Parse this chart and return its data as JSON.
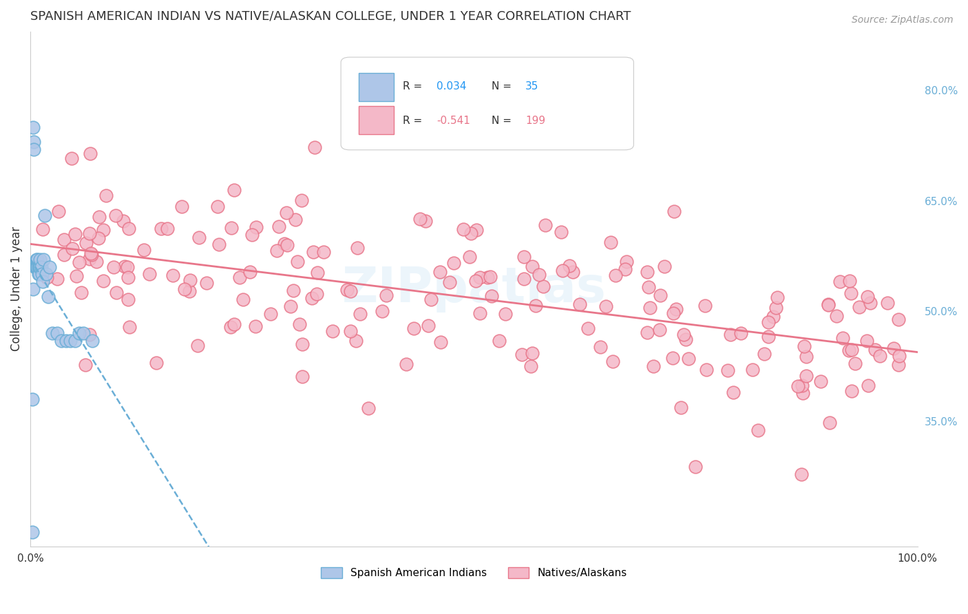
{
  "title": "SPANISH AMERICAN INDIAN VS NATIVE/ALASKAN COLLEGE, UNDER 1 YEAR CORRELATION CHART",
  "source": "Source: ZipAtlas.com",
  "ylabel": "College, Under 1 year",
  "right_yticks": [
    0.35,
    0.5,
    0.65,
    0.8
  ],
  "right_yticklabels": [
    "35.0%",
    "50.0%",
    "65.0%",
    "80.0%"
  ],
  "legend_blue_R": "0.034",
  "legend_blue_N": "35",
  "legend_pink_R": "-0.541",
  "legend_pink_N": "199",
  "blue_color": "#aec6e8",
  "blue_edge_color": "#6aaed6",
  "pink_color": "#f4b8c8",
  "pink_edge_color": "#e8768a",
  "blue_trend_color": "#6aaed6",
  "pink_trend_color": "#e8768a",
  "watermark": "ZIPpatlas",
  "ylim": [
    0.18,
    0.88
  ],
  "xlim": [
    0.0,
    1.0
  ]
}
